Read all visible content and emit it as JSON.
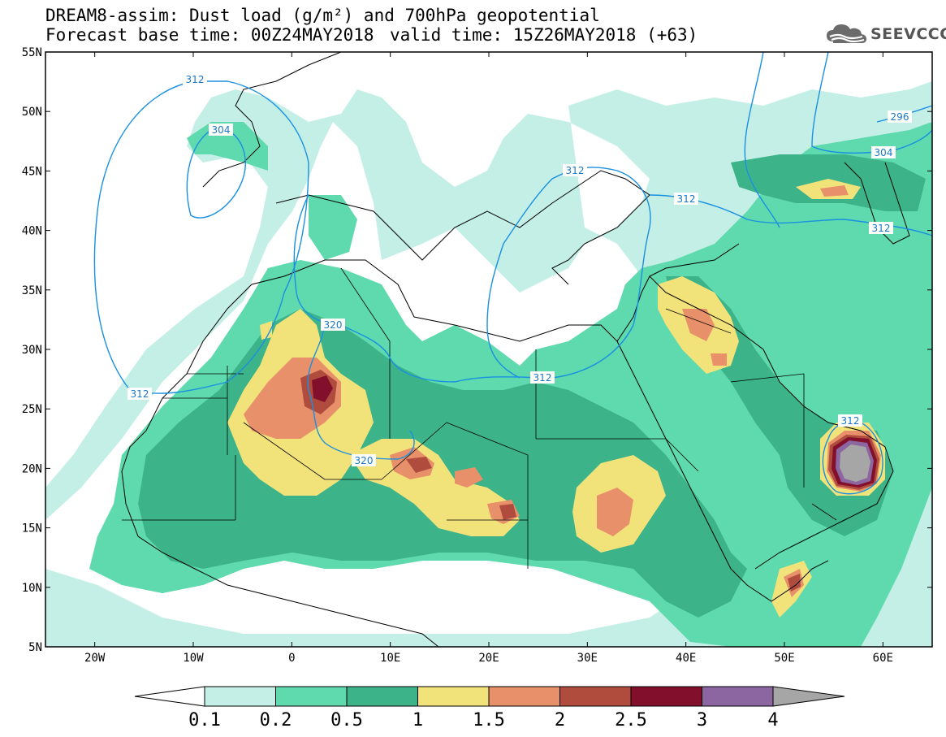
{
  "title": {
    "line1": "DREAM8-assim: Dust load (g/m²) and 700hPa geopotential",
    "line2_left": "Forecast base time: 00Z24MAY2018",
    "line2_right": "valid time: 15Z26MAY2018 (+63)"
  },
  "logo": {
    "text": "SEEVCCC",
    "icon": "cloud-logo-icon"
  },
  "map": {
    "lon_range": [
      -25,
      65
    ],
    "lat_range": [
      5,
      55
    ],
    "lat_labels": [
      "55N",
      "50N",
      "45N",
      "40N",
      "35N",
      "30N",
      "25N",
      "20N",
      "15N",
      "10N",
      "5N"
    ],
    "lon_labels": [
      "20W",
      "10W",
      "0",
      "10E",
      "20E",
      "30E",
      "40E",
      "50E",
      "60E"
    ],
    "contour_labels": [
      "312",
      "304",
      "312",
      "296",
      "304",
      "312",
      "312",
      "312",
      "320",
      "320",
      "312",
      "312"
    ]
  },
  "colorbar": {
    "labels": [
      "0.1",
      "0.2",
      "0.5",
      "1",
      "1.5",
      "2",
      "2.5",
      "3",
      "4"
    ],
    "colors": [
      "#c4efe6",
      "#5fd9ae",
      "#3db38a",
      "#f2e27a",
      "#e8906a",
      "#b04c3e",
      "#82102c",
      "#8c66a0",
      "#a6a6a6"
    ]
  },
  "colors": {
    "dust_0_1": "#c4efe6",
    "dust_0_2": "#5fd9ae",
    "dust_0_5": "#3db38a",
    "dust_1": "#f2e27a",
    "dust_1_5": "#e8906a",
    "dust_2": "#b04c3e",
    "dust_2_5": "#82102c",
    "dust_3": "#8c66a0",
    "dust_4": "#a6a6a6",
    "contour": "#1a90e0"
  }
}
